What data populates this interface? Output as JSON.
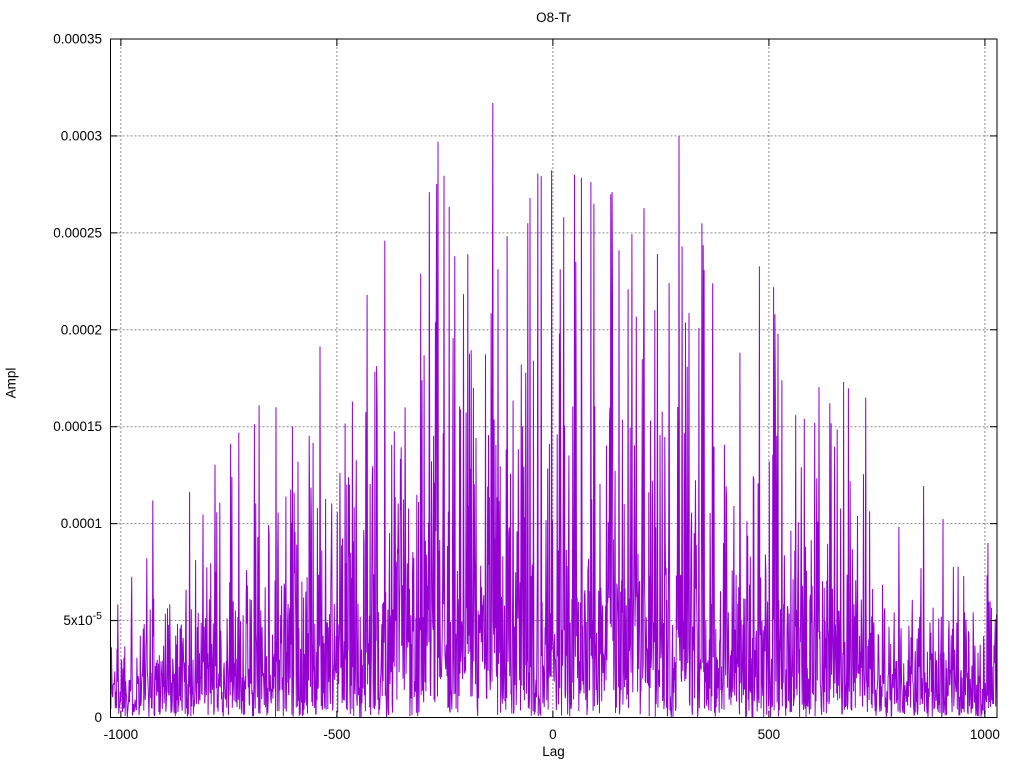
{
  "chart_data": {
    "type": "line",
    "style": "dense-impulse-noise",
    "title": "O8-Tr",
    "xlabel": "Lag",
    "ylabel": "Ampl",
    "xlim": [
      -1024,
      1028
    ],
    "ylim": [
      0,
      0.00035
    ],
    "grid": true,
    "legend": "none",
    "line_color": "#9400d3",
    "grid_color": "#8c8c8c",
    "x_ticks": [
      -1000,
      -500,
      0,
      500,
      1000
    ],
    "y_ticks": [
      {
        "v": 0,
        "label": "0"
      },
      {
        "v": 5e-05,
        "label": "5x10",
        "sup": "-5"
      },
      {
        "v": 0.0001,
        "label": "0.0001"
      },
      {
        "v": 0.00015,
        "label": "0.00015"
      },
      {
        "v": 0.0002,
        "label": "0.0002"
      },
      {
        "v": 0.00025,
        "label": "0.00025"
      },
      {
        "v": 0.0003,
        "label": "0.0003"
      },
      {
        "v": 0.00035,
        "label": "0.00035"
      }
    ],
    "envelope": [
      [
        -1024,
        0.0001
      ],
      [
        -900,
        0.000115
      ],
      [
        -800,
        0.000125
      ],
      [
        -700,
        0.000155
      ],
      [
        -600,
        0.00017
      ],
      [
        -500,
        0.000205
      ],
      [
        -420,
        0.000225
      ],
      [
        -350,
        0.000255
      ],
      [
        -250,
        0.00028
      ],
      [
        -150,
        0.000305
      ],
      [
        -80,
        0.000275
      ],
      [
        0,
        0.000285
      ],
      [
        100,
        0.000275
      ],
      [
        200,
        0.00026
      ],
      [
        300,
        0.000285
      ],
      [
        400,
        0.00026
      ],
      [
        500,
        0.000225
      ],
      [
        600,
        0.000195
      ],
      [
        700,
        0.000165
      ],
      [
        780,
        0.000135
      ],
      [
        880,
        0.000115
      ],
      [
        1028,
        0.000105
      ]
    ],
    "peaks": [
      [
        -926,
        0.000112
      ],
      [
        -743,
        0.000124
      ],
      [
        -680,
        0.000161
      ],
      [
        -641,
        0.00016
      ],
      [
        -590,
        0.000132
      ],
      [
        -430,
        0.000218
      ],
      [
        -389,
        0.000246
      ],
      [
        -306,
        0.000229
      ],
      [
        -266,
        0.000297
      ],
      [
        -227,
        0.000238
      ],
      [
        -197,
        0.000239
      ],
      [
        -139,
        0.000317
      ],
      [
        -58,
        0.000255
      ],
      [
        -53,
        0.000268
      ],
      [
        25,
        0.000258
      ],
      [
        95,
        0.000265
      ],
      [
        137,
        0.000271
      ],
      [
        153,
        0.000241
      ],
      [
        292,
        0.0003
      ],
      [
        299,
        0.000243
      ],
      [
        345,
        0.000255
      ],
      [
        370,
        0.000224
      ],
      [
        511,
        0.000222
      ],
      [
        514,
        0.000208
      ],
      [
        521,
        0.000198
      ],
      [
        530,
        0.000174
      ],
      [
        562,
        0.000156
      ],
      [
        606,
        0.000152
      ],
      [
        724,
        0.000165
      ],
      [
        1007,
        9e-05
      ]
    ],
    "noise_seed": 1337,
    "noise_rate": 4.6,
    "step": 1
  }
}
